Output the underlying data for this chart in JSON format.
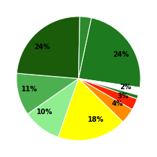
{
  "slices": [
    24,
    2,
    1,
    3,
    4,
    18,
    10,
    11,
    24,
    3
  ],
  "labels": [
    "24%",
    "2%",
    "",
    "3%",
    "4%",
    "18%",
    "10%",
    "11%",
    "24%",
    ""
  ],
  "colors": [
    "#1e7a1e",
    "#ffffff",
    "#1e7a1e",
    "#ff2200",
    "#ff8c00",
    "#ffff00",
    "#90ee90",
    "#4caf50",
    "#1a5c0a",
    "#2d8a2d"
  ],
  "startangle": 78,
  "figsize": [
    2.27,
    2.27
  ],
  "dpi": 100
}
